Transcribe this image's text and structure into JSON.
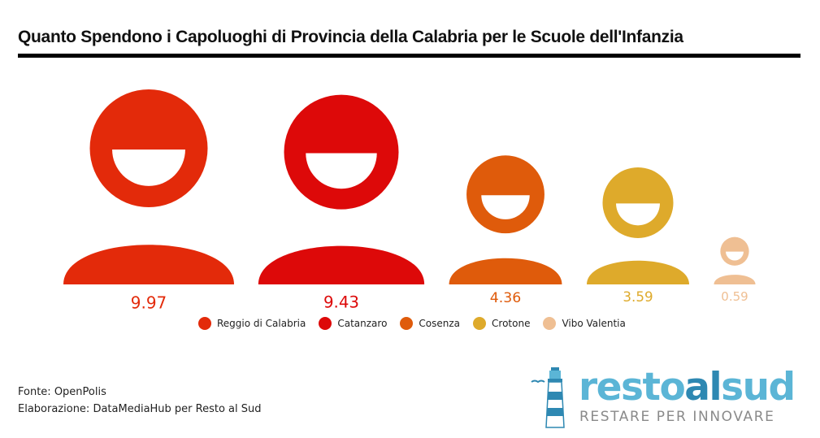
{
  "chart_data": {
    "type": "pictogram",
    "title": "Quanto Spendono i Capoluoghi di Provincia della Calabria per le Scuole dell'Infanzia",
    "categories": [
      "Reggio di Calabria",
      "Catanzaro",
      "Cosenza",
      "Crotone",
      "Vibo Valentia"
    ],
    "values": [
      9.97,
      9.43,
      4.36,
      3.59,
      0.59
    ],
    "value_labels": [
      "9.97",
      "9.43",
      "4.36",
      "3.59",
      "0.59"
    ],
    "colors": [
      "#e32a0a",
      "#dd0909",
      "#df5b0b",
      "#deaa2b",
      "#efbf93"
    ],
    "legend_position": "bottom"
  },
  "footer": {
    "source": "Fonte: OpenPolis",
    "elaboration": "Elaborazione: DataMediaHub per Resto al Sud"
  },
  "logo": {
    "word_part1": "resto",
    "word_part2": "al",
    "word_part3": "sud",
    "tagline": "RESTARE PER INNOVARE",
    "colors": {
      "light": "#5bb5d6",
      "dark": "#2e88b2",
      "tagline": "#8a8a8a"
    }
  }
}
